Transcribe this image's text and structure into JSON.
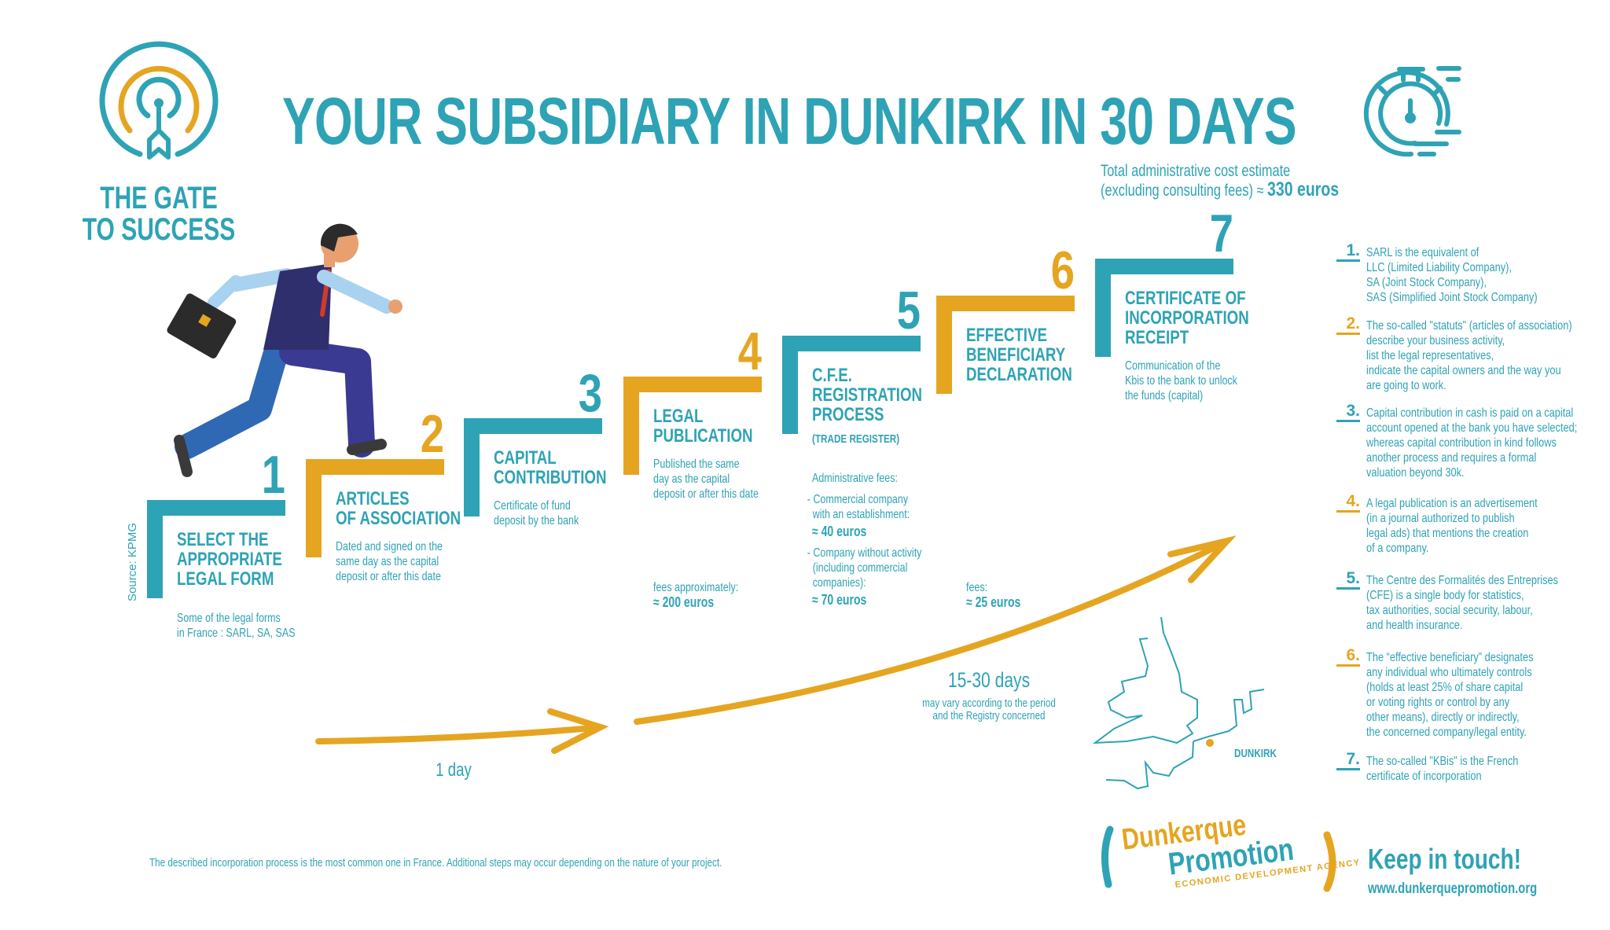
{
  "colors": {
    "teal": "#2ea3b5",
    "orange": "#e5a521"
  },
  "logo": {
    "brand_line1": "THE GATE",
    "brand_line2": "TO SUCCESS",
    "icon": "target-arrow-logo"
  },
  "header": {
    "title": "YOUR SUBSIDIARY IN DUNKIRK IN 30 DAYS",
    "cost_line1": "Total administrative cost estimate",
    "cost_line2": "(excluding consulting fees) ≈",
    "cost_value": "330  euros",
    "icon": "stopwatch-icon"
  },
  "source": "Source: KPMG",
  "steps": [
    {
      "number": "1",
      "title": "SELECT THE\nAPPROPRIATE\nLEGAL FORM",
      "description": "Some of the legal forms\nin France : SARL, SA, SAS",
      "color": "teal"
    },
    {
      "number": "2",
      "title": "ARTICLES\nOF ASSOCIATION",
      "description": "Dated and signed on the\nsame day as the capital\ndeposit or after this date",
      "color": "orange"
    },
    {
      "number": "3",
      "title": "CAPITAL\nCONTRIBUTION",
      "description": "Certificate of fund\ndeposit by the bank",
      "color": "teal"
    },
    {
      "number": "4",
      "title": "LEGAL\nPUBLICATION",
      "description": "Published the same\nday as the capital\ndeposit or after this date",
      "color": "orange",
      "fees_label": "fees approximately:",
      "fees_value": "≈ 200 euros"
    },
    {
      "number": "5",
      "title": "C.F.E.\nREGISTRATION\nPROCESS",
      "subtitle": "(TRADE REGISTER)",
      "color": "teal",
      "fees_heading": "Administrative fees:",
      "fee_items": [
        {
          "label": "- Commercial company\n  with an establishment:",
          "value": "≈ 40 euros"
        },
        {
          "label": "- Company without activity\n  (including commercial\n  companies):",
          "value": "≈ 70 euros"
        }
      ]
    },
    {
      "number": "6",
      "title": "EFFECTIVE\nBENEFICIARY\nDECLARATION",
      "color": "orange",
      "fees_label": "fees:",
      "fees_value": "≈ 25 euros"
    },
    {
      "number": "7",
      "title": "CERTIFICATE OF\nINCORPORATION\nRECEIPT",
      "description": "Communication of the\nKbis to the bank to unlock\nthe funds (capital)",
      "color": "teal"
    }
  ],
  "timeline": {
    "short_label": "1 day",
    "long_label": "15-30 days",
    "long_note": "may vary according to the period\nand the Registry concerned"
  },
  "map": {
    "city_label": "DUNKIRK"
  },
  "notes": [
    {
      "number": "1.",
      "color": "teal",
      "text": "SARL is the equivalent of\nLLC (Limited Liability Company),\nSA (Joint Stock Company),\nSAS (Simplified Joint Stock Company)"
    },
    {
      "number": "2.",
      "color": "orange",
      "text": "The so-called \"statuts\" (articles of association)\ndescribe your business activity,\nlist the legal representatives,\nindicate the capital owners and the way you\nare going to work."
    },
    {
      "number": "3.",
      "color": "teal",
      "text": "Capital contribution in cash is paid on a capital\naccount opened at the bank you have selected;\nwhereas capital contribution in kind follows\nanother process and requires a formal\nvaluation beyond 30k."
    },
    {
      "number": "4.",
      "color": "orange",
      "text": "A legal publication is an advertisement\n(in a journal authorized to publish\nlegal ads) that mentions the creation\nof a company."
    },
    {
      "number": "5.",
      "color": "teal",
      "text": "The Centre des Formalités des Entreprises\n(CFE) is a single body for statistics,\ntax authorities, social security, labour,\nand health insurance."
    },
    {
      "number": "6.",
      "color": "orange",
      "text": "The “effective beneficiary” designates\nany individual who ultimately controls\n(holds at least 25% of share capital\nor voting rights or control by any\nother means), directly or indirectly,\nthe concerned company/legal entity."
    },
    {
      "number": "7.",
      "color": "teal",
      "text": "The so-called \"KBis\" is the French\ncertificate of incorporation"
    }
  ],
  "footer": {
    "note": "The described incorporation process is the most common one in France. Additional steps may occur depending on the nature of your project."
  },
  "agency_logo": {
    "line1": "Dunkerque",
    "line2": "Promotion",
    "tagline": "ECONOMIC DEVELOPMENT AGENCY"
  },
  "contact": {
    "heading": "Keep in touch!",
    "url": "www.dunkerquepromotion.org"
  }
}
